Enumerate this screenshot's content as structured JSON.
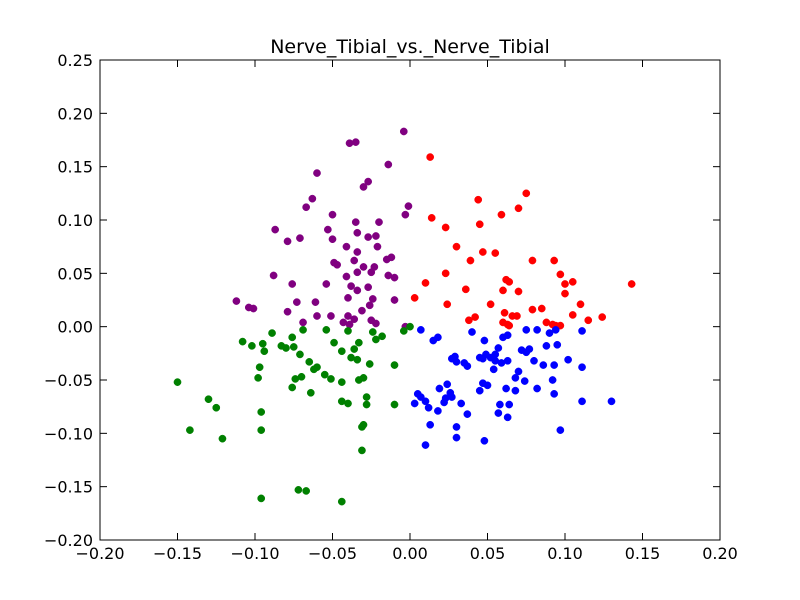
{
  "chart_data": {
    "type": "scatter",
    "title": "Nerve_Tibial_vs._Nerve_Tibial",
    "xlabel": "",
    "ylabel": "",
    "xlim": [
      -0.2,
      0.2
    ],
    "ylim": [
      -0.2,
      0.25
    ],
    "x_ticks": [
      -0.2,
      -0.15,
      -0.1,
      -0.05,
      0.0,
      0.05,
      0.1,
      0.15,
      0.2
    ],
    "x_tick_labels": [
      "−0.20",
      "−0.15",
      "−0.10",
      "−0.05",
      "0.00",
      "0.05",
      "0.10",
      "0.15",
      "0.20"
    ],
    "y_ticks": [
      -0.2,
      -0.15,
      -0.1,
      -0.05,
      0.0,
      0.05,
      0.1,
      0.15,
      0.2,
      0.25
    ],
    "y_tick_labels": [
      "−0.20",
      "−0.15",
      "−0.10",
      "−0.05",
      "0.00",
      "0.05",
      "0.10",
      "0.15",
      "0.20",
      "0.25"
    ],
    "grid": false,
    "legend": "none",
    "series": [
      {
        "color": "#800080",
        "points": [
          [
            -0.004,
            0.183
          ],
          [
            -0.035,
            0.173
          ],
          [
            -0.039,
            0.172
          ],
          [
            -0.014,
            0.152
          ],
          [
            -0.06,
            0.144
          ],
          [
            -0.027,
            0.136
          ],
          [
            -0.03,
            0.131
          ],
          [
            -0.063,
            0.12
          ],
          [
            -0.067,
            0.112
          ],
          [
            -0.001,
            0.113
          ],
          [
            -0.003,
            0.105
          ],
          [
            -0.05,
            0.105
          ],
          [
            -0.035,
            0.098
          ],
          [
            -0.02,
            0.098
          ],
          [
            -0.087,
            0.091
          ],
          [
            -0.053,
            0.091
          ],
          [
            -0.034,
            0.088
          ],
          [
            -0.022,
            0.085
          ],
          [
            -0.027,
            0.084
          ],
          [
            -0.071,
            0.083
          ],
          [
            -0.05,
            0.082
          ],
          [
            -0.079,
            0.08
          ],
          [
            -0.041,
            0.075
          ],
          [
            -0.021,
            0.075
          ],
          [
            -0.034,
            0.07
          ],
          [
            -0.012,
            0.065
          ],
          [
            -0.015,
            0.063
          ],
          [
            -0.036,
            0.062
          ],
          [
            -0.049,
            0.06
          ],
          [
            -0.047,
            0.058
          ],
          [
            -0.03,
            0.056
          ],
          [
            -0.023,
            0.056
          ],
          [
            -0.025,
            0.051
          ],
          [
            -0.034,
            0.051
          ],
          [
            -0.088,
            0.048
          ],
          [
            -0.014,
            0.048
          ],
          [
            -0.041,
            0.047
          ],
          [
            -0.01,
            0.046
          ],
          [
            -0.076,
            0.04
          ],
          [
            -0.054,
            0.04
          ],
          [
            -0.038,
            0.038
          ],
          [
            -0.027,
            0.037
          ],
          [
            -0.034,
            0.034
          ],
          [
            -0.04,
            0.027
          ],
          [
            -0.024,
            0.026
          ],
          [
            -0.01,
            0.025
          ],
          [
            -0.061,
            0.023
          ],
          [
            -0.073,
            0.023
          ],
          [
            -0.026,
            0.02
          ],
          [
            -0.112,
            0.024
          ],
          [
            -0.104,
            0.018
          ],
          [
            -0.101,
            0.017
          ],
          [
            -0.079,
            0.014
          ],
          [
            -0.06,
            0.01
          ],
          [
            -0.051,
            0.01
          ],
          [
            -0.04,
            0.01
          ],
          [
            -0.031,
            0.015
          ],
          [
            -0.036,
            0.007
          ],
          [
            -0.025,
            0.006
          ],
          [
            -0.069,
            0.004
          ],
          [
            -0.043,
            0.004
          ],
          [
            -0.039,
            0.002
          ],
          [
            -0.022,
            0.003
          ],
          [
            -0.003,
            0.0
          ]
        ]
      },
      {
        "color": "#ff0000",
        "points": [
          [
            0.013,
            0.159
          ],
          [
            0.075,
            0.125
          ],
          [
            0.044,
            0.119
          ],
          [
            0.07,
            0.111
          ],
          [
            0.059,
            0.105
          ],
          [
            0.014,
            0.102
          ],
          [
            0.045,
            0.096
          ],
          [
            0.023,
            0.093
          ],
          [
            0.03,
            0.075
          ],
          [
            0.047,
            0.07
          ],
          [
            0.055,
            0.069
          ],
          [
            0.039,
            0.062
          ],
          [
            0.079,
            0.062
          ],
          [
            0.093,
            0.062
          ],
          [
            0.023,
            0.05
          ],
          [
            0.097,
            0.049
          ],
          [
            0.062,
            0.044
          ],
          [
            0.064,
            0.042
          ],
          [
            0.1,
            0.04
          ],
          [
            0.105,
            0.042
          ],
          [
            0.143,
            0.04
          ],
          [
            0.036,
            0.035
          ],
          [
            0.06,
            0.034
          ],
          [
            0.07,
            0.033
          ],
          [
            0.1,
            0.031
          ],
          [
            0.01,
            0.041
          ],
          [
            0.003,
            0.027
          ],
          [
            0.024,
            0.021
          ],
          [
            0.052,
            0.021
          ],
          [
            0.079,
            0.016
          ],
          [
            0.11,
            0.021
          ],
          [
            0.085,
            0.017
          ],
          [
            0.061,
            0.013
          ],
          [
            0.066,
            0.01
          ],
          [
            0.069,
            0.01
          ],
          [
            0.105,
            0.011
          ],
          [
            0.124,
            0.009
          ],
          [
            0.042,
            0.009
          ],
          [
            0.038,
            0.006
          ],
          [
            0.115,
            0.006
          ],
          [
            0.06,
            0.004
          ],
          [
            0.063,
            0.002
          ],
          [
            0.064,
            0.001
          ],
          [
            0.088,
            0.004
          ],
          [
            0.092,
            0.002
          ],
          [
            0.094,
            0.001
          ],
          [
            0.097,
            0.001
          ]
        ]
      },
      {
        "color": "#008000",
        "points": [
          [
            0.0,
            0.0
          ],
          [
            -0.004,
            -0.004
          ],
          [
            -0.024,
            -0.005
          ],
          [
            -0.04,
            -0.004
          ],
          [
            -0.054,
            -0.003
          ],
          [
            -0.069,
            -0.003
          ],
          [
            -0.089,
            -0.006
          ],
          [
            -0.076,
            -0.01
          ],
          [
            -0.108,
            -0.014
          ],
          [
            -0.095,
            -0.016
          ],
          [
            -0.102,
            -0.018
          ],
          [
            -0.083,
            -0.018
          ],
          [
            -0.075,
            -0.019
          ],
          [
            -0.08,
            -0.02
          ],
          [
            -0.033,
            -0.015
          ],
          [
            -0.049,
            -0.015
          ],
          [
            -0.036,
            -0.021
          ],
          [
            -0.018,
            -0.009
          ],
          [
            -0.022,
            -0.012
          ],
          [
            -0.094,
            -0.023
          ],
          [
            -0.071,
            -0.026
          ],
          [
            -0.044,
            -0.023
          ],
          [
            -0.038,
            -0.029
          ],
          [
            -0.034,
            -0.031
          ],
          [
            -0.065,
            -0.033
          ],
          [
            -0.06,
            -0.038
          ],
          [
            -0.097,
            -0.038
          ],
          [
            -0.026,
            -0.035
          ],
          [
            -0.01,
            -0.036
          ],
          [
            -0.062,
            -0.04
          ],
          [
            -0.055,
            -0.045
          ],
          [
            -0.051,
            -0.049
          ],
          [
            -0.07,
            -0.047
          ],
          [
            -0.074,
            -0.049
          ],
          [
            -0.098,
            -0.048
          ],
          [
            -0.044,
            -0.052
          ],
          [
            -0.03,
            -0.048
          ],
          [
            -0.033,
            -0.05
          ],
          [
            -0.076,
            -0.057
          ],
          [
            -0.064,
            -0.062
          ],
          [
            -0.028,
            -0.066
          ],
          [
            -0.15,
            -0.052
          ],
          [
            -0.13,
            -0.068
          ],
          [
            -0.125,
            -0.076
          ],
          [
            -0.096,
            -0.08
          ],
          [
            -0.044,
            -0.07
          ],
          [
            -0.04,
            -0.072
          ],
          [
            -0.028,
            -0.073
          ],
          [
            -0.01,
            -0.073
          ],
          [
            -0.03,
            -0.092
          ],
          [
            -0.031,
            -0.094
          ],
          [
            -0.142,
            -0.097
          ],
          [
            -0.096,
            -0.097
          ],
          [
            -0.121,
            -0.105
          ],
          [
            -0.031,
            -0.116
          ],
          [
            -0.072,
            -0.153
          ],
          [
            -0.067,
            -0.154
          ],
          [
            -0.096,
            -0.161
          ],
          [
            -0.044,
            -0.164
          ]
        ]
      },
      {
        "color": "#0000ff",
        "points": [
          [
            0.007,
            -0.003
          ],
          [
            0.018,
            -0.01
          ],
          [
            0.015,
            -0.013
          ],
          [
            0.04,
            -0.005
          ],
          [
            0.06,
            -0.01
          ],
          [
            0.063,
            -0.008
          ],
          [
            0.075,
            -0.003
          ],
          [
            0.082,
            -0.003
          ],
          [
            0.09,
            -0.006
          ],
          [
            0.094,
            -0.003
          ],
          [
            0.111,
            -0.004
          ],
          [
            0.088,
            -0.018
          ],
          [
            0.048,
            -0.013
          ],
          [
            0.057,
            -0.02
          ],
          [
            0.072,
            -0.022
          ],
          [
            0.075,
            -0.024
          ],
          [
            0.077,
            -0.021
          ],
          [
            0.095,
            -0.017
          ],
          [
            0.049,
            -0.026
          ],
          [
            0.055,
            -0.026
          ],
          [
            0.055,
            -0.032
          ],
          [
            0.045,
            -0.029
          ],
          [
            0.052,
            -0.029
          ],
          [
            0.047,
            -0.03
          ],
          [
            0.029,
            -0.028
          ],
          [
            0.027,
            -0.03
          ],
          [
            0.03,
            -0.033
          ],
          [
            0.035,
            -0.034
          ],
          [
            0.037,
            -0.037
          ],
          [
            0.059,
            -0.034
          ],
          [
            0.063,
            -0.032
          ],
          [
            0.08,
            -0.032
          ],
          [
            0.054,
            -0.04
          ],
          [
            0.086,
            -0.036
          ],
          [
            0.093,
            -0.036
          ],
          [
            0.102,
            -0.031
          ],
          [
            0.111,
            -0.038
          ],
          [
            0.07,
            -0.042
          ],
          [
            0.068,
            -0.048
          ],
          [
            0.074,
            -0.051
          ],
          [
            0.092,
            -0.05
          ],
          [
            0.024,
            -0.054
          ],
          [
            0.047,
            -0.053
          ],
          [
            0.05,
            -0.055
          ],
          [
            0.019,
            -0.058
          ],
          [
            0.026,
            -0.062
          ],
          [
            0.045,
            -0.06
          ],
          [
            0.062,
            -0.058
          ],
          [
            0.068,
            -0.06
          ],
          [
            0.082,
            -0.058
          ],
          [
            0.093,
            -0.063
          ],
          [
            0.023,
            -0.067
          ],
          [
            0.027,
            -0.066
          ],
          [
            0.022,
            -0.071
          ],
          [
            0.005,
            -0.063
          ],
          [
            0.007,
            -0.066
          ],
          [
            0.01,
            -0.07
          ],
          [
            0.003,
            -0.072
          ],
          [
            0.012,
            -0.076
          ],
          [
            0.018,
            -0.079
          ],
          [
            0.033,
            -0.072
          ],
          [
            0.058,
            -0.073
          ],
          [
            0.064,
            -0.073
          ],
          [
            0.111,
            -0.07
          ],
          [
            0.13,
            -0.07
          ],
          [
            0.037,
            -0.082
          ],
          [
            0.057,
            -0.081
          ],
          [
            0.063,
            -0.085
          ],
          [
            0.013,
            -0.092
          ],
          [
            0.03,
            -0.094
          ],
          [
            0.097,
            -0.097
          ],
          [
            0.03,
            -0.104
          ],
          [
            0.048,
            -0.107
          ],
          [
            0.01,
            -0.111
          ]
        ]
      }
    ]
  }
}
